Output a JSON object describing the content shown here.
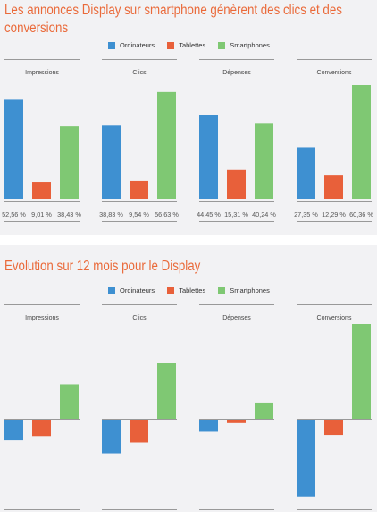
{
  "colors": {
    "Ordinateurs": "#3e90d1",
    "Tablettes": "#e8603a",
    "Smartphones": "#7fc873",
    "title": "#ea6a3a",
    "axis": "#999999"
  },
  "chart1": {
    "title_line1": "Les annonces Display sur smartphone génèrent des clics et des",
    "title_line2": "conversions",
    "legend": [
      "Ordinateurs",
      "Tablettes",
      "Smartphones"
    ]
  },
  "chart2": {
    "title": "Evolution sur 12 mois pour le Display",
    "legend": [
      "Ordinateurs",
      "Tablettes",
      "Smartphones"
    ]
  },
  "chart_data": [
    {
      "type": "bar",
      "title": "Les annonces Display sur smartphone génèrent des clics et des conversions",
      "panels": [
        "Impressions",
        "Clics",
        "Dépenses",
        "Conversions"
      ],
      "categories": [
        "Ordinateurs",
        "Tablettes",
        "Smartphones"
      ],
      "series": [
        {
          "name": "Impressions",
          "values": [
            52.56,
            9.01,
            38.43
          ],
          "labels": [
            "52,56 %",
            "9,01 %",
            "38,43 %"
          ]
        },
        {
          "name": "Clics",
          "values": [
            38.83,
            9.54,
            56.63
          ],
          "labels": [
            "38,83 %",
            "9,54 %",
            "56,63 %"
          ]
        },
        {
          "name": "Dépenses",
          "values": [
            44.45,
            15.31,
            40.24
          ],
          "labels": [
            "44,45 %",
            "15,31 %",
            "40,24 %"
          ]
        },
        {
          "name": "Conversions",
          "values": [
            27.35,
            12.29,
            60.36
          ],
          "labels": [
            "27,35 %",
            "12,29 %",
            "60,36 %"
          ]
        }
      ],
      "unit": "%",
      "ylim": [
        0,
        60.36
      ]
    },
    {
      "type": "bar",
      "title": "Evolution sur 12 mois pour le Display",
      "panels": [
        "Impressions",
        "Clics",
        "Dépenses",
        "Conversions"
      ],
      "categories": [
        "Ordinateurs",
        "Tablettes",
        "Smartphones"
      ],
      "series": [
        {
          "name": "Impressions",
          "values": [
            -1.0,
            -0.8,
            1.6
          ]
        },
        {
          "name": "Clics",
          "values": [
            -1.6,
            -1.1,
            2.6
          ]
        },
        {
          "name": "Dépenses",
          "values": [
            -0.6,
            -0.2,
            0.75
          ]
        },
        {
          "name": "Conversions",
          "values": [
            -3.6,
            -0.75,
            4.4
          ]
        }
      ],
      "value_labels_shown": false,
      "ylim": [
        -3.6,
        4.4
      ]
    }
  ]
}
